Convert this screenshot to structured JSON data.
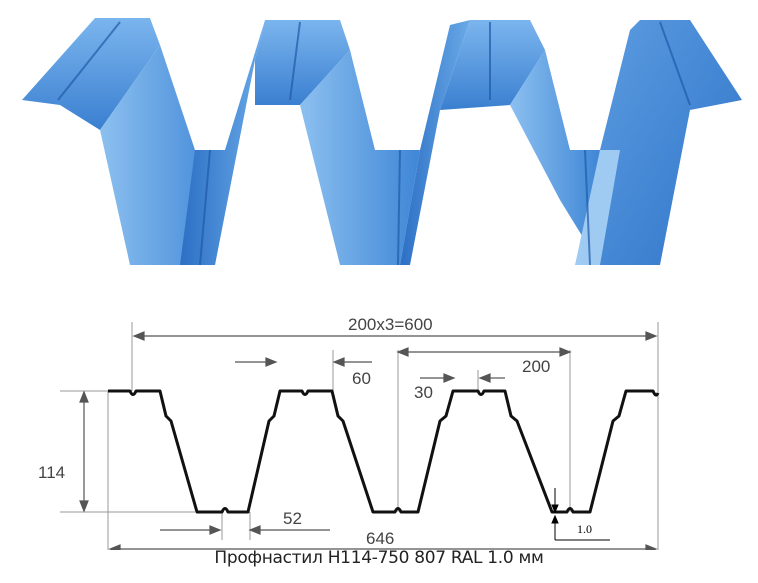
{
  "product_render": {
    "description_icon": "corrugated-sheet-3d",
    "color": "#3a7fd0"
  },
  "drawing": {
    "pitch_total": "200x3=600",
    "pitch": "200",
    "crest_width": "60",
    "rib_width": "30",
    "height": "114",
    "trough_width": "52",
    "overall_width": "646",
    "thickness": "1.0"
  },
  "caption": "Профнастил H114-750 807 RAL 1.0 мм"
}
